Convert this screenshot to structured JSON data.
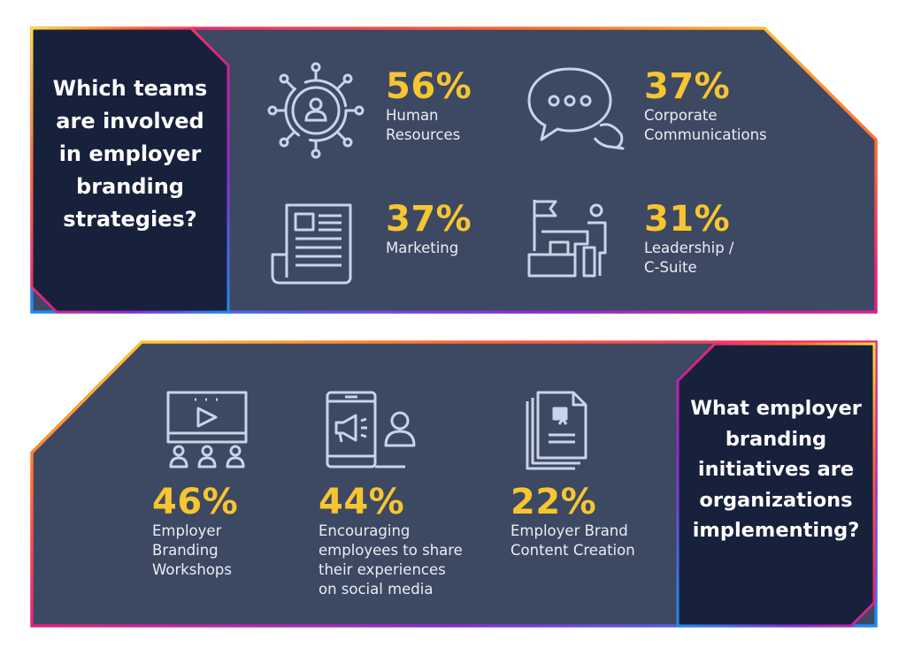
{
  "colors": {
    "panel": "#3d4862",
    "dark": "#17213c",
    "accent": "#f7c530",
    "icon": "#c9d4e8",
    "gradient": [
      "#ffe23b",
      "#ff6a2e",
      "#e6217d",
      "#8b2bd6",
      "#1d8cf0"
    ]
  },
  "top": {
    "question": "Which teams are involved in employer branding strategies?",
    "items": [
      {
        "icon": "network-person-icon",
        "percent": "56%",
        "label": "Human\nResources"
      },
      {
        "icon": "chat-bubbles-icon",
        "percent": "37%",
        "label": "Corporate\nCommunications"
      },
      {
        "icon": "newspaper-icon",
        "percent": "37%",
        "label": "Marketing"
      },
      {
        "icon": "leader-podium-icon",
        "percent": "31%",
        "label": "Leadership /\nC-Suite"
      }
    ]
  },
  "bottom": {
    "question": "What employer branding initiatives are organizations implementing?",
    "items": [
      {
        "icon": "video-workshop-icon",
        "percent": "46%",
        "label": "Employer\nBranding\nWorkshops"
      },
      {
        "icon": "phone-megaphone-icon",
        "percent": "44%",
        "label": "Encouraging\nemployees to share\ntheir experiences\non social media"
      },
      {
        "icon": "documents-icon",
        "percent": "22%",
        "label": "Employer Brand\nContent Creation"
      }
    ]
  }
}
